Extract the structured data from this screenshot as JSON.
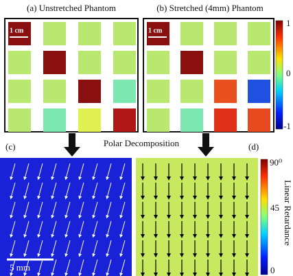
{
  "panel_a": {
    "title": "(a) Unstretched Phantom",
    "scale_label": "1 cm"
  },
  "panel_b": {
    "title": "(b) Stretched (4mm) Phantom",
    "scale_label": "1 cm"
  },
  "top_colorbar": {
    "ticks": [
      "1",
      "0",
      "-1"
    ]
  },
  "middle_label": "Polar Decomposition",
  "panel_c": {
    "label": "(c)",
    "scale_label": "5 mm"
  },
  "panel_d": {
    "label": "(d)"
  },
  "bottom_colorbar": {
    "ticks": [
      "90⁰",
      "45",
      "0"
    ],
    "title": "Linear Retardance"
  }
}
